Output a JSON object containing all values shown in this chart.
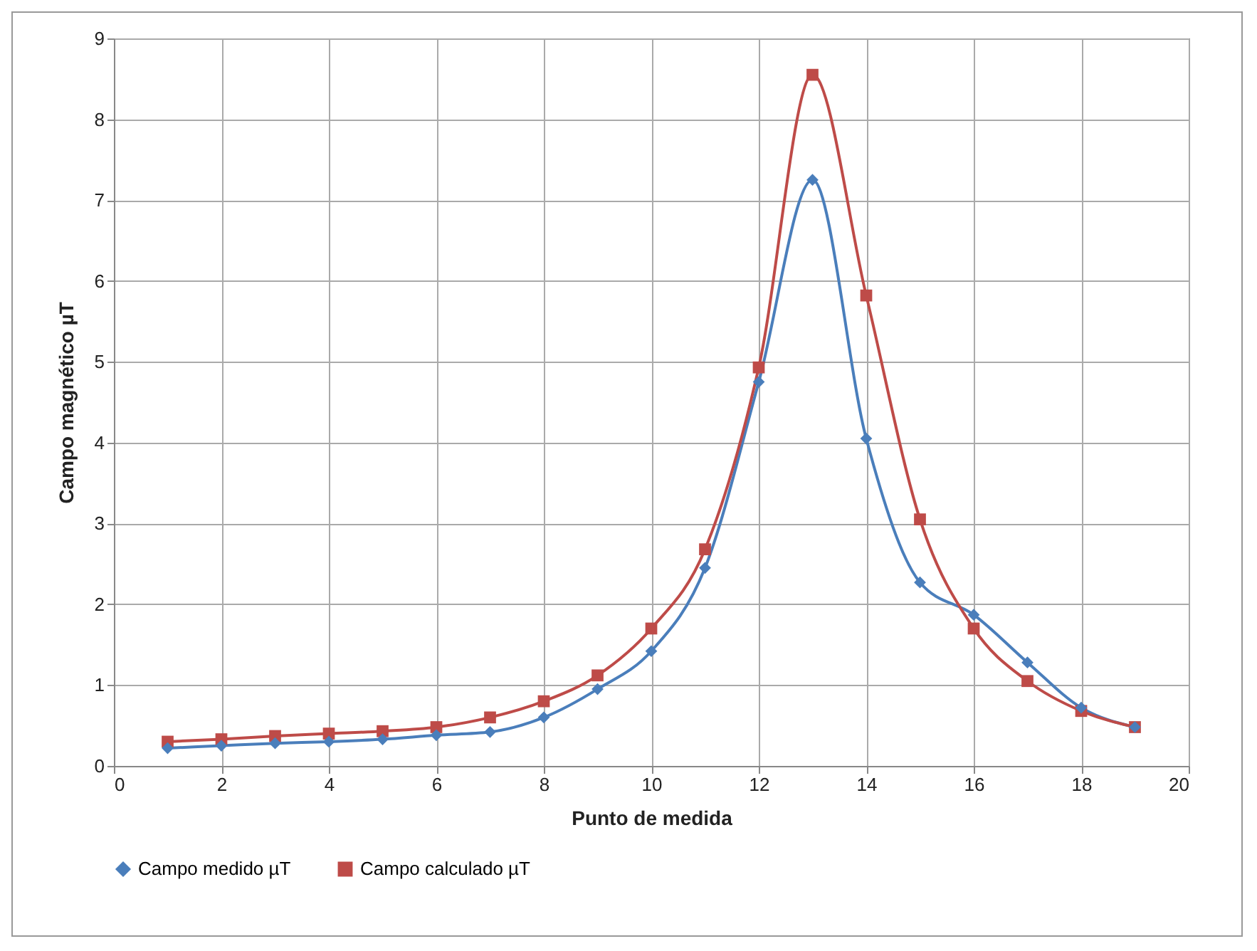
{
  "chart_data": {
    "type": "line",
    "xlabel": "Punto de medida",
    "ylabel": "Campo magnético µT",
    "x": [
      1,
      2,
      3,
      4,
      5,
      6,
      7,
      8,
      9,
      10,
      11,
      12,
      13,
      14,
      15,
      16,
      17,
      18,
      19
    ],
    "series": [
      {
        "name": "Campo medido µT",
        "color": "#4a7ebb",
        "marker": "diamond",
        "values": [
          0.22,
          0.25,
          0.28,
          0.3,
          0.33,
          0.38,
          0.42,
          0.6,
          0.95,
          1.42,
          2.45,
          4.75,
          7.25,
          4.05,
          2.27,
          1.87,
          1.28,
          0.72,
          0.48
        ]
      },
      {
        "name": "Campo calculado µT",
        "color": "#be4b48",
        "marker": "square",
        "values": [
          0.3,
          0.33,
          0.37,
          0.4,
          0.43,
          0.48,
          0.6,
          0.8,
          1.12,
          1.7,
          2.68,
          4.93,
          8.55,
          5.82,
          3.05,
          1.7,
          1.05,
          0.68,
          0.48
        ]
      }
    ],
    "xlim": [
      0,
      20
    ],
    "xticks": [
      0,
      2,
      4,
      6,
      8,
      10,
      12,
      14,
      16,
      18,
      20
    ],
    "ylim": [
      0,
      9
    ],
    "yticks": [
      0,
      1,
      2,
      3,
      4,
      5,
      6,
      7,
      8,
      9
    ],
    "grid": true,
    "legend": "bottom",
    "line_style": "solid"
  }
}
